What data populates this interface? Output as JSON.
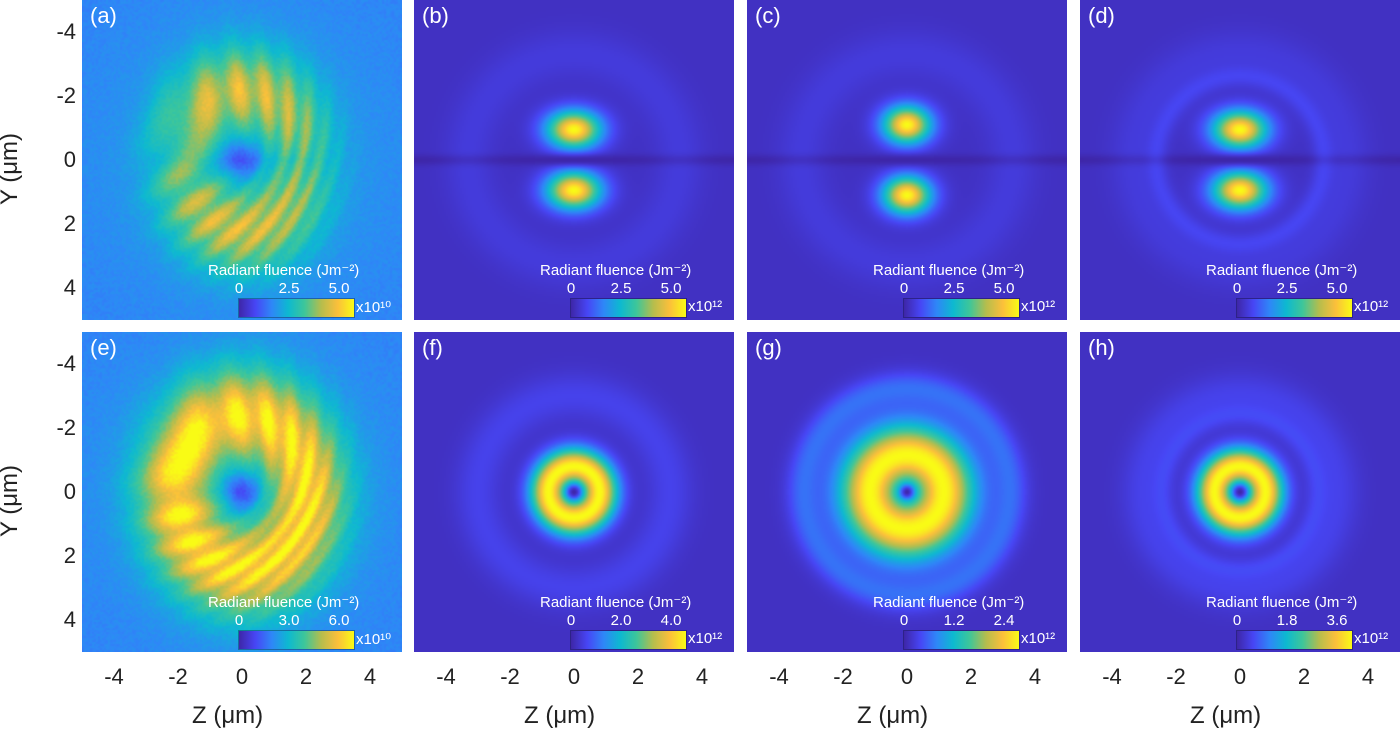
{
  "chart_data": {
    "type": "heatmap",
    "rows": 2,
    "cols": 4,
    "xlabel": "Z (μm)",
    "ylabel": "Y (μm)",
    "xlim": [
      -5,
      5
    ],
    "ylim": [
      -5,
      5
    ],
    "y_reversed": true,
    "xticks": [
      "-4",
      "-2",
      "0",
      "2",
      "4"
    ],
    "yticks": [
      "-4",
      "-2",
      "0",
      "2",
      "4"
    ],
    "colorbar_title": "Radiant fluence (Jm⁻²)",
    "panels": [
      {
        "label": "(a)",
        "pattern": "noisy-two-lobe",
        "cbar_ticks": [
          "0",
          "2.5",
          "5.0"
        ],
        "cbar_exponent": "x10¹⁰"
      },
      {
        "label": "(b)",
        "pattern": "two-lobe",
        "cbar_ticks": [
          "0",
          "2.5",
          "5.0"
        ],
        "cbar_exponent": "x10¹²"
      },
      {
        "label": "(c)",
        "pattern": "two-lobe-round",
        "cbar_ticks": [
          "0",
          "2.5",
          "5.0"
        ],
        "cbar_exponent": "x10¹²"
      },
      {
        "label": "(d)",
        "pattern": "two-lobe-rings",
        "cbar_ticks": [
          "0",
          "2.5",
          "5.0"
        ],
        "cbar_exponent": "x10¹²"
      },
      {
        "label": "(e)",
        "pattern": "noisy-donut",
        "cbar_ticks": [
          "0",
          "3.0",
          "6.0"
        ],
        "cbar_exponent": "x10¹⁰"
      },
      {
        "label": "(f)",
        "pattern": "donut",
        "cbar_ticks": [
          "0",
          "2.0",
          "4.0"
        ],
        "cbar_exponent": "x10¹²"
      },
      {
        "label": "(g)",
        "pattern": "donut-wide",
        "cbar_ticks": [
          "0",
          "1.2",
          "2.4"
        ],
        "cbar_exponent": "x10¹²"
      },
      {
        "label": "(h)",
        "pattern": "donut-rings",
        "cbar_ticks": [
          "0",
          "1.8",
          "3.6"
        ],
        "cbar_exponent": "x10¹²"
      }
    ]
  }
}
